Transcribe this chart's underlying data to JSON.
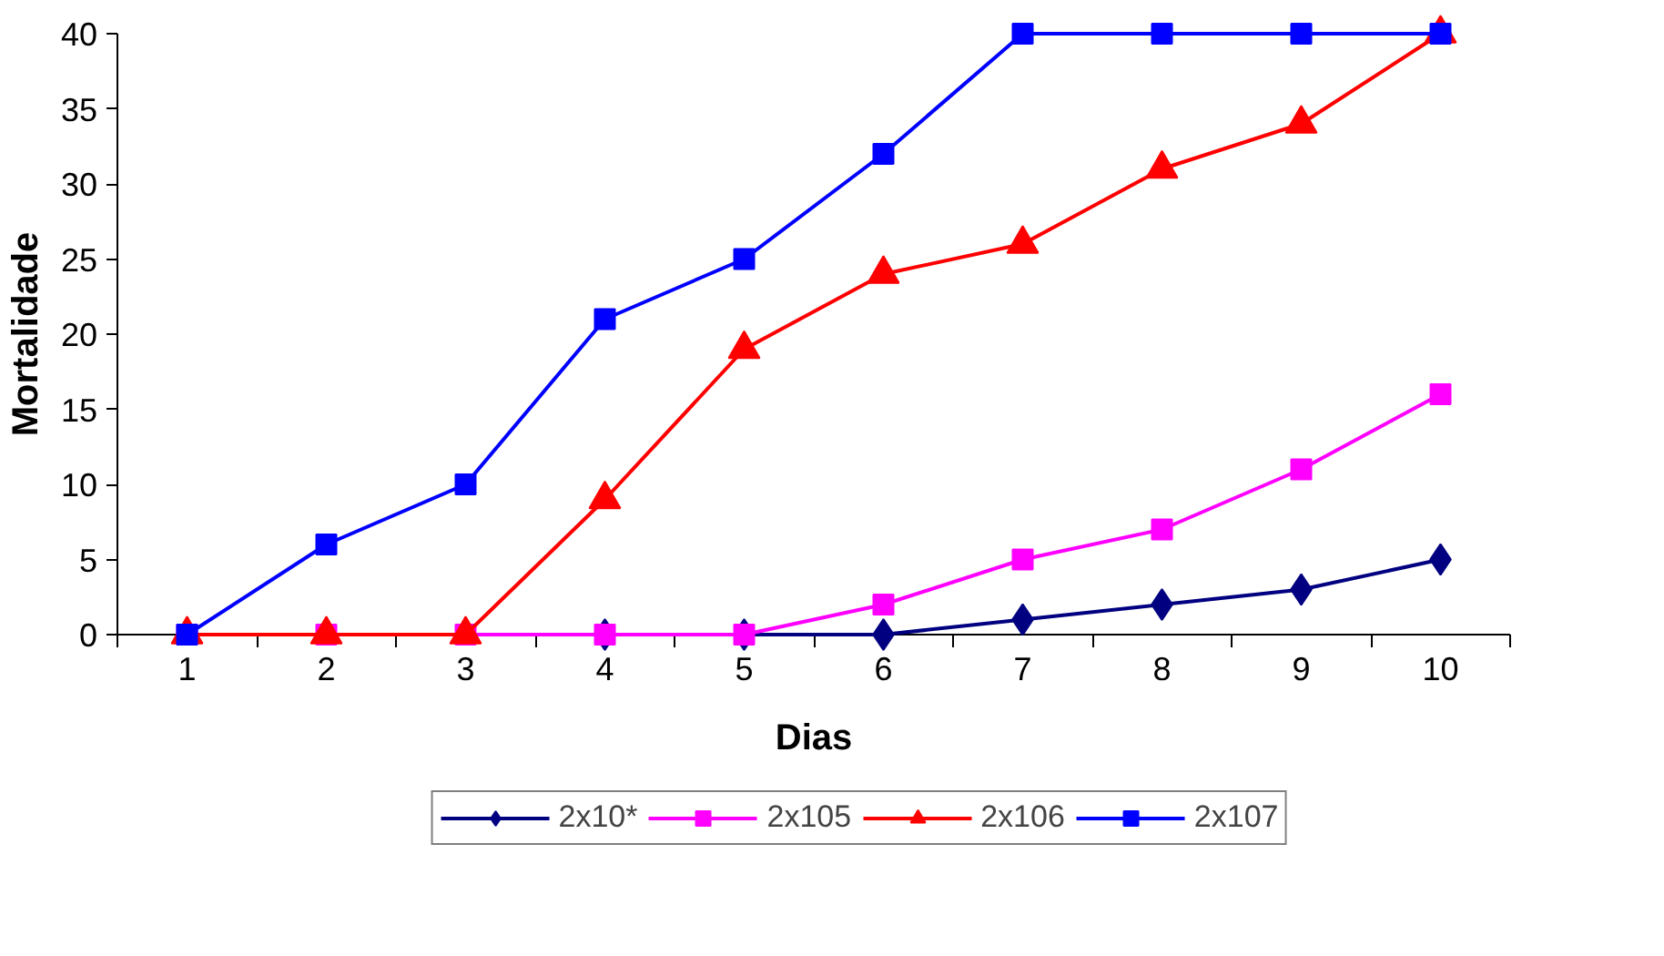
{
  "chart_data": {
    "type": "line",
    "xlabel": "Dias",
    "ylabel": "Mortalidade",
    "categories": [
      "1",
      "2",
      "3",
      "4",
      "5",
      "6",
      "7",
      "8",
      "9",
      "10"
    ],
    "ylim": [
      0,
      40
    ],
    "yticks": [
      0,
      5,
      10,
      15,
      20,
      25,
      30,
      35,
      40
    ],
    "grid": false,
    "legend": "bottom",
    "series": [
      {
        "name": "2x10*",
        "color": "#000080",
        "marker": "diamond",
        "values": [
          null,
          null,
          null,
          0,
          0,
          0,
          1,
          2,
          3,
          5
        ]
      },
      {
        "name": "2x105",
        "color": "#ff00ff",
        "marker": "square",
        "values": [
          0,
          0,
          0,
          0,
          0,
          2,
          5,
          7,
          11,
          16
        ]
      },
      {
        "name": "2x106",
        "color": "#ff0000",
        "marker": "triangle",
        "values": [
          0,
          0,
          0,
          9,
          19,
          24,
          26,
          31,
          34,
          40
        ]
      },
      {
        "name": "2x107",
        "color": "#0000ff",
        "marker": "square",
        "values": [
          0,
          6,
          10,
          21,
          25,
          32,
          40,
          40,
          40,
          40
        ]
      }
    ]
  }
}
